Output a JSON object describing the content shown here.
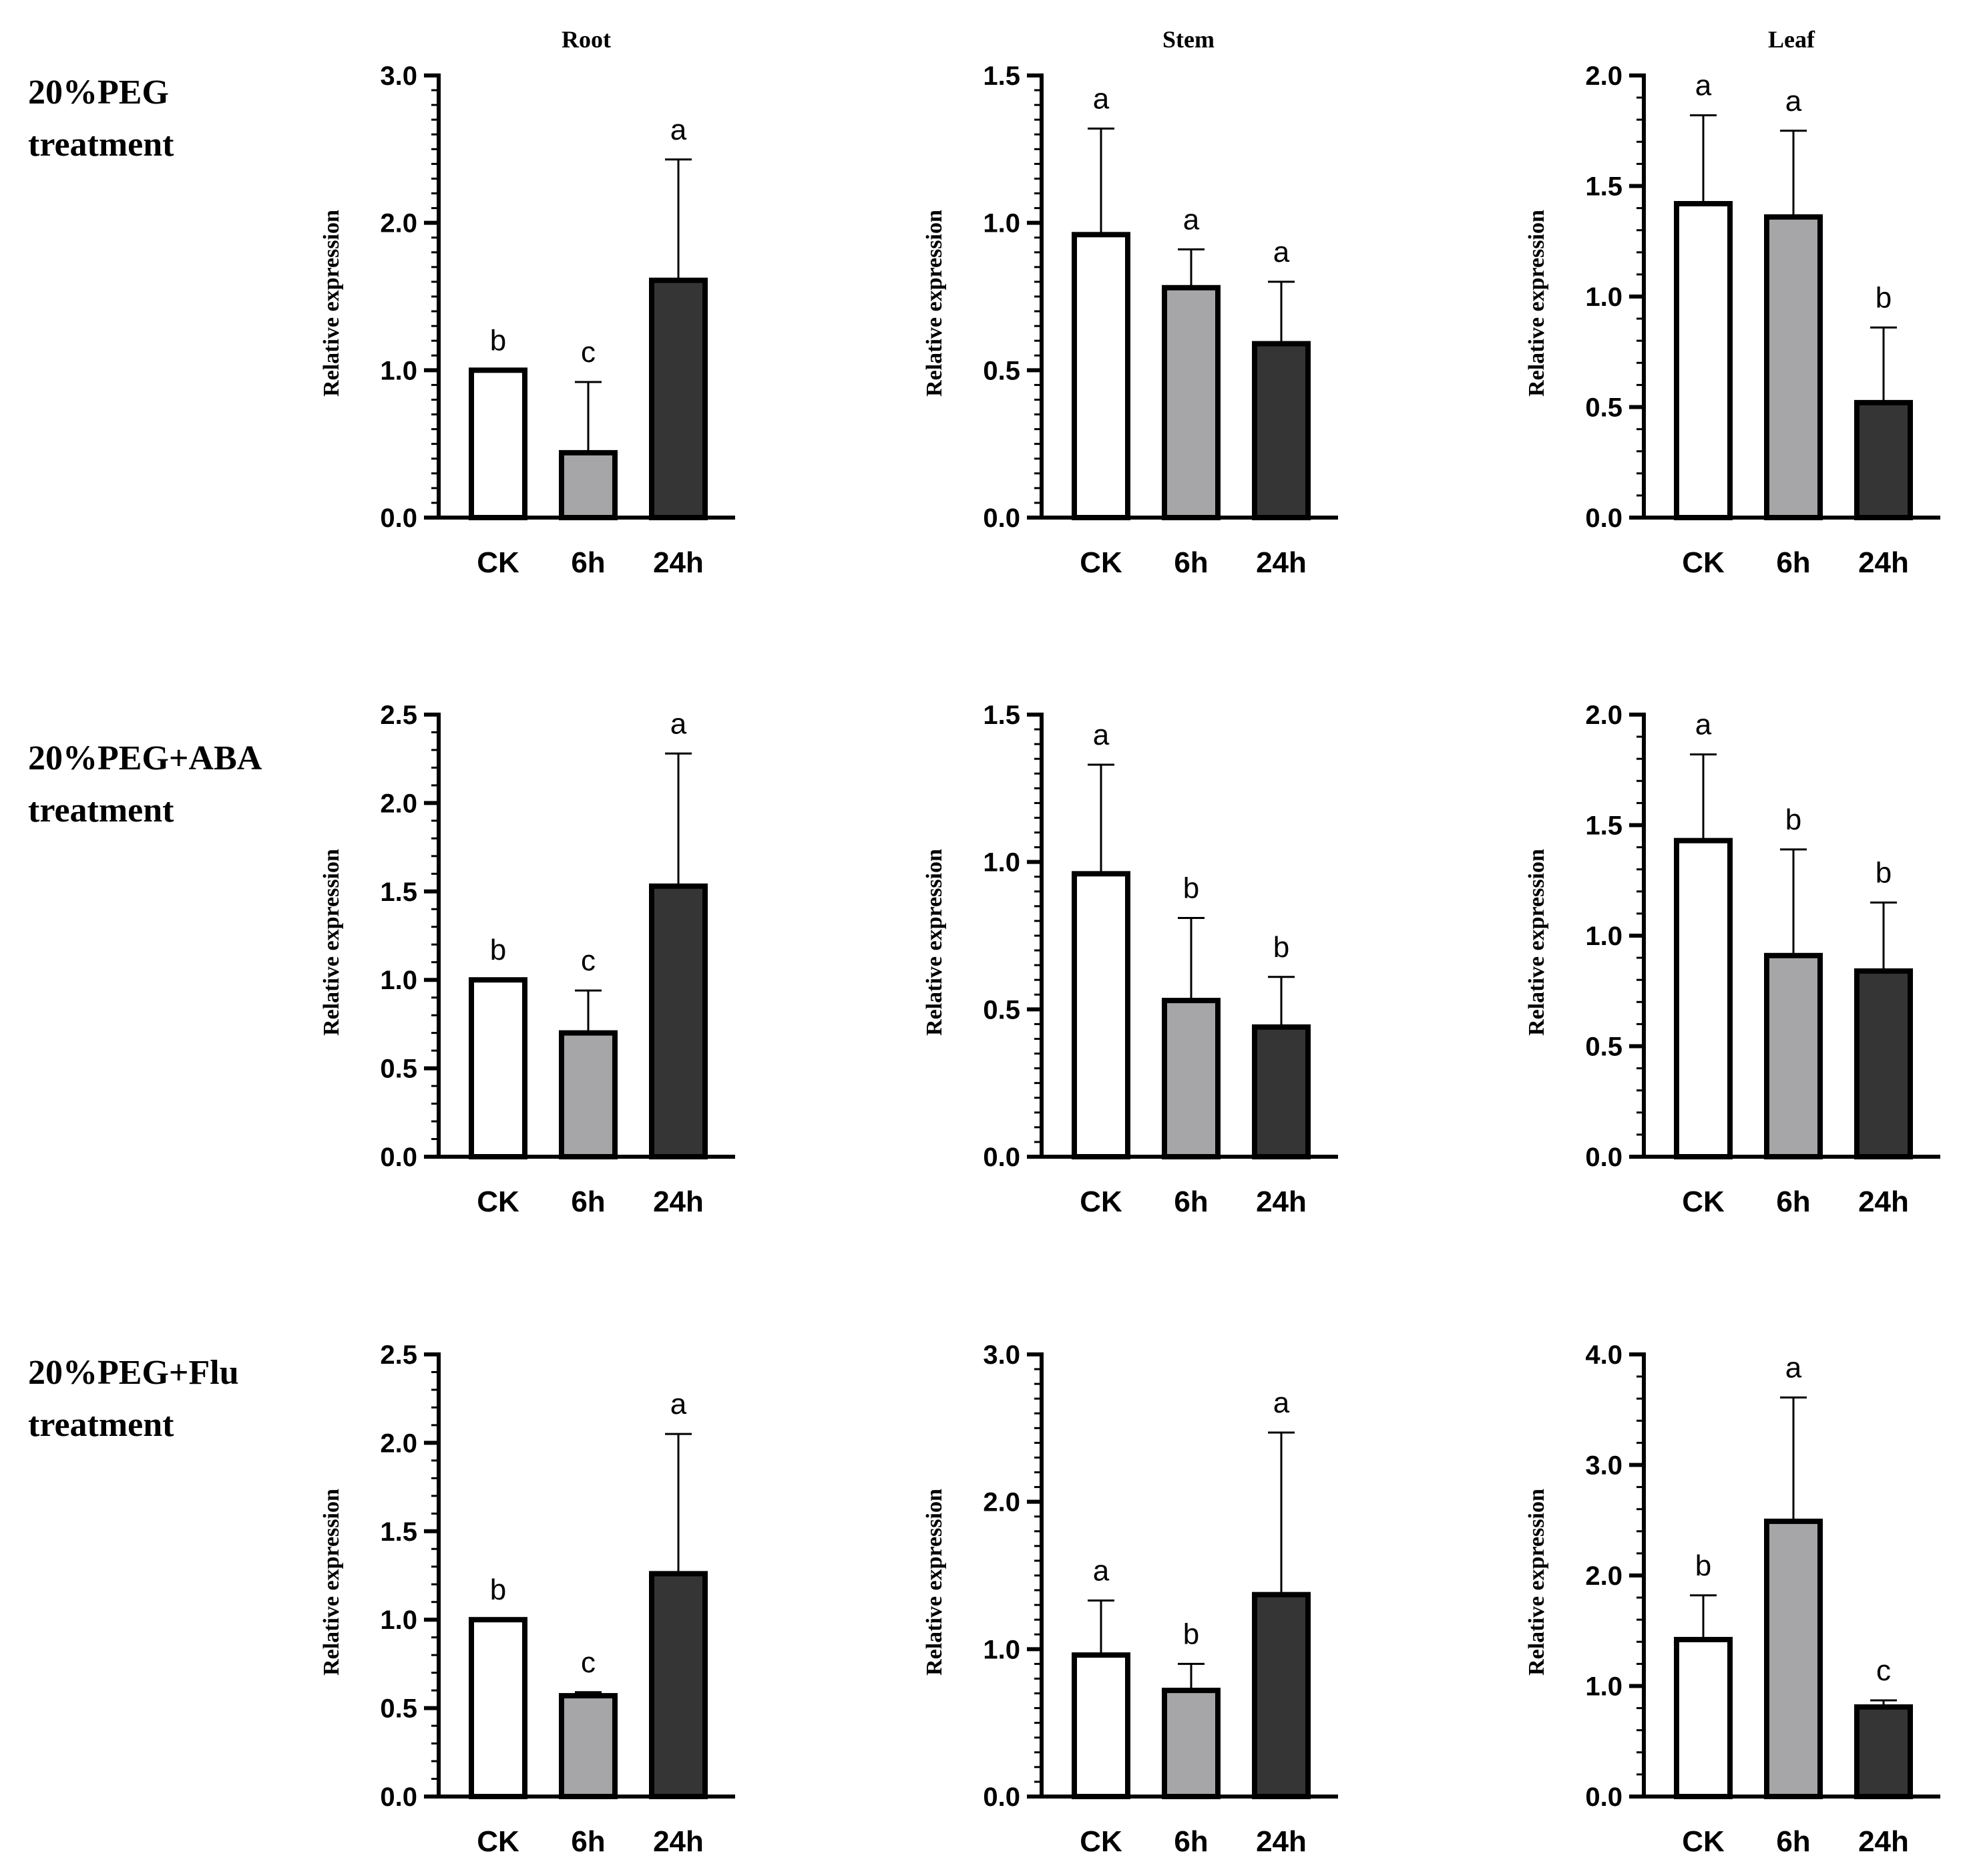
{
  "row_labels": [
    {
      "line1": "20%PEG",
      "line2": "treatment"
    },
    {
      "line1": "20%PEG+ABA",
      "line2": "treatment"
    },
    {
      "line1": "20%PEG+Flu",
      "line2": "treatment"
    }
  ],
  "column_titles": [
    "Root",
    "Stem",
    "Leaf"
  ],
  "colors": {
    "ck": "#ffffff",
    "h6": "#a6a6a8",
    "h24": "#353535",
    "stroke": "#000000"
  },
  "chart_data": [
    {
      "type": "bar",
      "row": "20%PEG treatment",
      "column": "Root",
      "categories": [
        "CK",
        "6h",
        "24h"
      ],
      "values": [
        1.0,
        0.44,
        1.61
      ],
      "errors": [
        0.0,
        0.48,
        0.82
      ],
      "letters": [
        "b",
        "c",
        "a"
      ],
      "ylabel": "Relative expression",
      "ylim": [
        0,
        3.0
      ],
      "ticks": [
        0.0,
        1.0,
        2.0,
        3.0
      ],
      "tick_labels": [
        "0.0",
        "1.0",
        "2.0",
        "3.0"
      ],
      "minor_step": 0.1
    },
    {
      "type": "bar",
      "row": "20%PEG treatment",
      "column": "Stem",
      "categories": [
        "CK",
        "6h",
        "24h"
      ],
      "values": [
        0.96,
        0.78,
        0.59
      ],
      "errors": [
        0.36,
        0.13,
        0.21
      ],
      "letters": [
        "a",
        "a",
        "a"
      ],
      "ylabel": "Relative expression",
      "ylim": [
        0,
        1.5
      ],
      "ticks": [
        0.0,
        0.5,
        1.0,
        1.5
      ],
      "tick_labels": [
        "0.0",
        "0.5",
        "1.0",
        "1.5"
      ],
      "minor_step": 0.05
    },
    {
      "type": "bar",
      "row": "20%PEG treatment",
      "column": "Leaf",
      "categories": [
        "CK",
        "6h",
        "24h"
      ],
      "values": [
        1.42,
        1.36,
        0.52
      ],
      "errors": [
        0.4,
        0.39,
        0.34
      ],
      "letters": [
        "a",
        "a",
        "b"
      ],
      "ylabel": "Relative expression",
      "ylim": [
        0,
        2.0
      ],
      "ticks": [
        0.0,
        0.5,
        1.0,
        1.5,
        2.0
      ],
      "tick_labels": [
        "0.0",
        "0.5",
        "1.0",
        "1.5",
        "2.0"
      ],
      "minor_step": 0.1
    },
    {
      "type": "bar",
      "row": "20%PEG+ABA treatment",
      "column": "Root",
      "categories": [
        "CK",
        "6h",
        "24h"
      ],
      "values": [
        1.0,
        0.7,
        1.53
      ],
      "errors": [
        0.0,
        0.24,
        0.75
      ],
      "letters": [
        "b",
        "c",
        "a"
      ],
      "ylabel": "Relative expression",
      "ylim": [
        0,
        2.5
      ],
      "ticks": [
        0.0,
        0.5,
        1.0,
        1.5,
        2.0,
        2.5
      ],
      "tick_labels": [
        "0.0",
        "0.5",
        "1.0",
        "1.5",
        "2.0",
        "2.5"
      ],
      "minor_step": 0.1
    },
    {
      "type": "bar",
      "row": "20%PEG+ABA treatment",
      "column": "Stem",
      "categories": [
        "CK",
        "6h",
        "24h"
      ],
      "values": [
        0.96,
        0.53,
        0.44
      ],
      "errors": [
        0.37,
        0.28,
        0.17
      ],
      "letters": [
        "a",
        "b",
        "b"
      ],
      "ylabel": "Relative expression",
      "ylim": [
        0,
        1.5
      ],
      "ticks": [
        0.0,
        0.5,
        1.0,
        1.5
      ],
      "tick_labels": [
        "0.0",
        "0.5",
        "1.0",
        "1.5"
      ],
      "minor_step": 0.05
    },
    {
      "type": "bar",
      "row": "20%PEG+ABA treatment",
      "column": "Leaf",
      "categories": [
        "CK",
        "6h",
        "24h"
      ],
      "values": [
        1.43,
        0.91,
        0.84
      ],
      "errors": [
        0.39,
        0.48,
        0.31
      ],
      "letters": [
        "a",
        "b",
        "b"
      ],
      "ylabel": "Relative expression",
      "ylim": [
        0,
        2.0
      ],
      "ticks": [
        0.0,
        0.5,
        1.0,
        1.5,
        2.0
      ],
      "tick_labels": [
        "0.0",
        "0.5",
        "1.0",
        "1.5",
        "2.0"
      ],
      "minor_step": 0.1
    },
    {
      "type": "bar",
      "row": "20%PEG+Flu treatment",
      "column": "Root",
      "categories": [
        "CK",
        "6h",
        "24h"
      ],
      "values": [
        1.0,
        0.57,
        1.26
      ],
      "errors": [
        0.0,
        0.02,
        0.79
      ],
      "letters": [
        "b",
        "c",
        "a"
      ],
      "ylabel": "Relative expression",
      "ylim": [
        0,
        2.5
      ],
      "ticks": [
        0.0,
        0.5,
        1.0,
        1.5,
        2.0,
        2.5
      ],
      "tick_labels": [
        "0.0",
        "0.5",
        "1.0",
        "1.5",
        "2.0",
        "2.5"
      ],
      "minor_step": 0.1
    },
    {
      "type": "bar",
      "row": "20%PEG+Flu treatment",
      "column": "Stem",
      "categories": [
        "CK",
        "6h",
        "24h"
      ],
      "values": [
        0.96,
        0.72,
        1.37
      ],
      "errors": [
        0.37,
        0.18,
        1.1
      ],
      "letters": [
        "a",
        "b",
        "a"
      ],
      "ylabel": "Relative expression",
      "ylim": [
        0,
        3.0
      ],
      "ticks": [
        0.0,
        1.0,
        2.0,
        3.0
      ],
      "tick_labels": [
        "0.0",
        "1.0",
        "2.0",
        "3.0"
      ],
      "minor_step": 0.1
    },
    {
      "type": "bar",
      "row": "20%PEG+Flu treatment",
      "column": "Leaf",
      "categories": [
        "CK",
        "6h",
        "24h"
      ],
      "values": [
        1.42,
        2.49,
        0.81
      ],
      "errors": [
        0.4,
        1.12,
        0.06
      ],
      "letters": [
        "b",
        "a",
        "c"
      ],
      "ylabel": "Relative expression",
      "ylim": [
        0,
        4.0
      ],
      "ticks": [
        0.0,
        1.0,
        2.0,
        3.0,
        4.0
      ],
      "tick_labels": [
        "0.0",
        "1.0",
        "2.0",
        "3.0",
        "4.0"
      ],
      "minor_step": 0.2
    }
  ]
}
